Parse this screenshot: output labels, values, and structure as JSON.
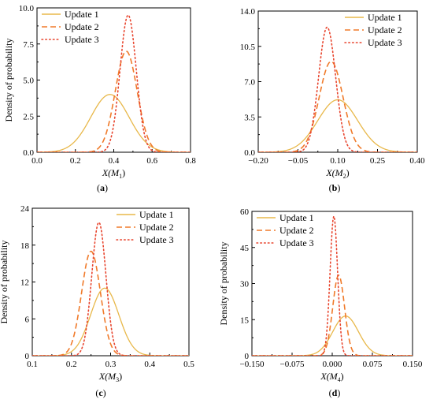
{
  "styles": {
    "colors": {
      "Update 1": "#E8B84A",
      "Update 2": "#F07A2A",
      "Update 3": "#E8452E"
    },
    "dash": {
      "Update 1": "none",
      "Update 2": "7,4",
      "Update 3": "1.6,3.2"
    }
  },
  "chart_data": [
    {
      "type": "line",
      "caption": "(a)",
      "xlabel": "X(M1)",
      "xlabel_parts": {
        "base": "X(M",
        "sub": "1",
        "end": ")"
      },
      "ylabel": "Density of probability",
      "xlim": [
        0.0,
        0.8
      ],
      "ylim": [
        0.0,
        10.0
      ],
      "xticks": [
        "0.0",
        "0.2",
        "0.4",
        "0.6",
        "0.8"
      ],
      "yticks": [
        "0.0",
        "2.5",
        "5.0",
        "7.5",
        "10.0"
      ],
      "legend": "top-left",
      "series": [
        {
          "name": "Update 1",
          "mu": 0.38,
          "sigma": 0.1,
          "peak": 4.0
        },
        {
          "name": "Update 2",
          "mu": 0.465,
          "sigma": 0.057,
          "peak": 7.0
        },
        {
          "name": "Update 3",
          "mu": 0.475,
          "sigma": 0.042,
          "peak": 9.5
        }
      ]
    },
    {
      "type": "line",
      "caption": "(b)",
      "xlabel": "X(M2)",
      "xlabel_parts": {
        "base": "X(M",
        "sub": "2",
        "end": ")"
      },
      "ylabel": "",
      "xlim": [
        -0.2,
        0.4
      ],
      "ylim": [
        0.0,
        14.0
      ],
      "xticks": [
        "−0.20",
        "−0.05",
        "0.10",
        "0.25",
        "0.40"
      ],
      "yticks": [
        "0.0",
        "3.5",
        "7.0",
        "10.5",
        "14.0"
      ],
      "legend": "top-right",
      "series": [
        {
          "name": "Update 1",
          "mu": 0.1,
          "sigma": 0.075,
          "peak": 5.2
        },
        {
          "name": "Update 2",
          "mu": 0.075,
          "sigma": 0.045,
          "peak": 9.0
        },
        {
          "name": "Update 3",
          "mu": 0.06,
          "sigma": 0.032,
          "peak": 12.4
        }
      ]
    },
    {
      "type": "line",
      "caption": "(c)",
      "xlabel": "X(M3)",
      "xlabel_parts": {
        "base": "X(M",
        "sub": "3",
        "end": ")"
      },
      "ylabel": "Density of probability",
      "xlim": [
        0.1,
        0.5
      ],
      "ylim": [
        0,
        24
      ],
      "xticks": [
        "0.1",
        "0.2",
        "0.3",
        "0.4",
        "0.5"
      ],
      "yticks": [
        "0",
        "6",
        "12",
        "18",
        "24"
      ],
      "legend": "top-right",
      "series": [
        {
          "name": "Update 1",
          "mu": 0.285,
          "sigma": 0.036,
          "peak": 11.0
        },
        {
          "name": "Update 2",
          "mu": 0.25,
          "sigma": 0.024,
          "peak": 17.0
        },
        {
          "name": "Update 3",
          "mu": 0.27,
          "sigma": 0.018,
          "peak": 21.7
        }
      ]
    },
    {
      "type": "line",
      "caption": "(d)",
      "xlabel": "X(M4)",
      "xlabel_parts": {
        "base": "X(M",
        "sub": "4",
        "end": ")"
      },
      "ylabel": "Density of probability",
      "xlim": [
        -0.15,
        0.15
      ],
      "ylim": [
        0,
        60
      ],
      "xticks": [
        "−0.150",
        "−0.075",
        "0.000",
        "0.075",
        "0.150"
      ],
      "yticks": [
        "0",
        "15",
        "30",
        "45",
        "60"
      ],
      "legend": "top-left",
      "series": [
        {
          "name": "Update 1",
          "mu": 0.025,
          "sigma": 0.024,
          "peak": 16.5
        },
        {
          "name": "Update 2",
          "mu": 0.012,
          "sigma": 0.011,
          "peak": 33.5
        },
        {
          "name": "Update 3",
          "mu": 0.003,
          "sigma": 0.007,
          "peak": 58.0
        }
      ]
    }
  ]
}
